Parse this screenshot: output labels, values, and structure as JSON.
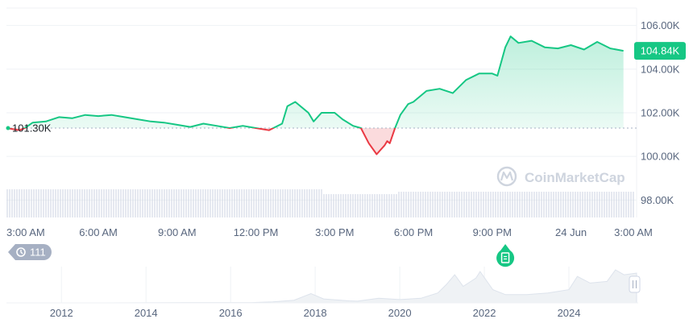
{
  "colors": {
    "up": "#16c784",
    "down": "#ea3943",
    "grid": "#eff2f5",
    "axis_text": "#58667e",
    "baseline": "#a6b0c3",
    "volume": "#cfd6e4",
    "watermark": "#c9d0db",
    "history_badge": "#a6b0c3",
    "navigator_area": "#eff2f5"
  },
  "watermark": {
    "text": "CoinMarketCap",
    "icon": "coinmarketcap-logo-icon"
  },
  "history_badge": {
    "icon": "history-icon",
    "count": "111"
  },
  "news_marker": {
    "icon": "document-icon",
    "x_value": 21.5
  },
  "scrollbar_handle": {
    "icon": "grip-handle-icon"
  },
  "chart_data": [
    {
      "type": "area",
      "series": [
        {
          "x": [
            2.5,
            3.0,
            3.2,
            3.5,
            4.0,
            4.5,
            5.0,
            5.5,
            6.0,
            6.5,
            7.0,
            7.5,
            8.0,
            8.5,
            9.0,
            9.5,
            10.0,
            10.5,
            11.0,
            11.5,
            12.0,
            12.5,
            13.0,
            13.2,
            13.5,
            14.0,
            14.2,
            14.5,
            15.0,
            15.3,
            15.7,
            16.0,
            16.3,
            16.6,
            16.9,
            17.0,
            17.1,
            17.3,
            17.5,
            17.8,
            18.0,
            18.5,
            19.0,
            19.5,
            20.0,
            20.5,
            21.0,
            21.2,
            21.5,
            21.7,
            22.0,
            22.5,
            23.0,
            23.5,
            24.0,
            24.5,
            25.0,
            25.5,
            26.0
          ],
          "y": [
            101.3,
            101.2,
            101.3,
            101.55,
            101.6,
            101.8,
            101.75,
            101.9,
            101.85,
            101.9,
            101.8,
            101.7,
            101.6,
            101.55,
            101.45,
            101.35,
            101.5,
            101.4,
            101.3,
            101.4,
            101.3,
            101.2,
            101.5,
            102.3,
            102.5,
            102.0,
            101.6,
            102.0,
            102.0,
            101.7,
            101.4,
            101.3,
            100.6,
            100.1,
            100.5,
            100.7,
            100.6,
            101.3,
            101.9,
            102.4,
            102.5,
            103.0,
            103.1,
            102.9,
            103.5,
            103.8,
            103.8,
            103.7,
            105.0,
            105.5,
            105.2,
            105.3,
            105.0,
            104.95,
            105.1,
            104.9,
            105.25,
            104.95,
            104.84
          ]
        }
      ],
      "baseline": 101.3,
      "baseline_label": "101.30K",
      "current_value": 104.84,
      "current_label": "104.84K",
      "ylim": [
        97.2,
        106.8
      ],
      "y_ticks": [
        {
          "v": 106,
          "label": "106.00K"
        },
        {
          "v": 104,
          "label": "104.00K"
        },
        {
          "v": 102,
          "label": "102.00K"
        },
        {
          "v": 100,
          "label": "100.00K"
        },
        {
          "v": 98,
          "label": "98.00K"
        }
      ],
      "xlim": [
        2.5,
        26.5
      ],
      "x_ticks": [
        {
          "v": 3,
          "label": "3:00 AM"
        },
        {
          "v": 6,
          "label": "6:00 AM"
        },
        {
          "v": 9,
          "label": "9:00 AM"
        },
        {
          "v": 12,
          "label": "12:00 PM"
        },
        {
          "v": 15,
          "label": "3:00 PM"
        },
        {
          "v": 18,
          "label": "6:00 PM"
        },
        {
          "v": 21,
          "label": "9:00 PM"
        },
        {
          "v": 24,
          "label": "24 Jun"
        },
        {
          "v": 27,
          "label": "3:00 AM"
        }
      ],
      "grid": true
    },
    {
      "type": "area",
      "xlim": [
        2010.7,
        2025.6
      ],
      "x_ticks": [
        {
          "v": 2012,
          "label": "2012"
        },
        {
          "v": 2014,
          "label": "2014"
        },
        {
          "v": 2016,
          "label": "2016"
        },
        {
          "v": 2018,
          "label": "2018"
        },
        {
          "v": 2020,
          "label": "2020"
        },
        {
          "v": 2022,
          "label": "2022"
        },
        {
          "v": 2024,
          "label": "2024"
        }
      ],
      "series": [
        {
          "x": [
            2010.7,
            2013,
            2015,
            2016.5,
            2017.0,
            2017.5,
            2017.9,
            2018.2,
            2018.8,
            2019.0,
            2019.5,
            2020.0,
            2020.5,
            2020.9,
            2021.1,
            2021.3,
            2021.5,
            2021.8,
            2021.9,
            2022.2,
            2022.5,
            2023.0,
            2023.5,
            2024.0,
            2024.2,
            2024.5,
            2024.9,
            2025.1,
            2025.3,
            2025.6
          ],
          "y": [
            0,
            0,
            0.01,
            0.01,
            0.03,
            0.08,
            0.28,
            0.12,
            0.06,
            0.05,
            0.14,
            0.1,
            0.14,
            0.3,
            0.55,
            0.85,
            0.5,
            0.75,
            0.95,
            0.4,
            0.25,
            0.25,
            0.3,
            0.4,
            0.8,
            0.6,
            0.65,
            1.0,
            0.85,
            0.9
          ]
        }
      ]
    }
  ]
}
